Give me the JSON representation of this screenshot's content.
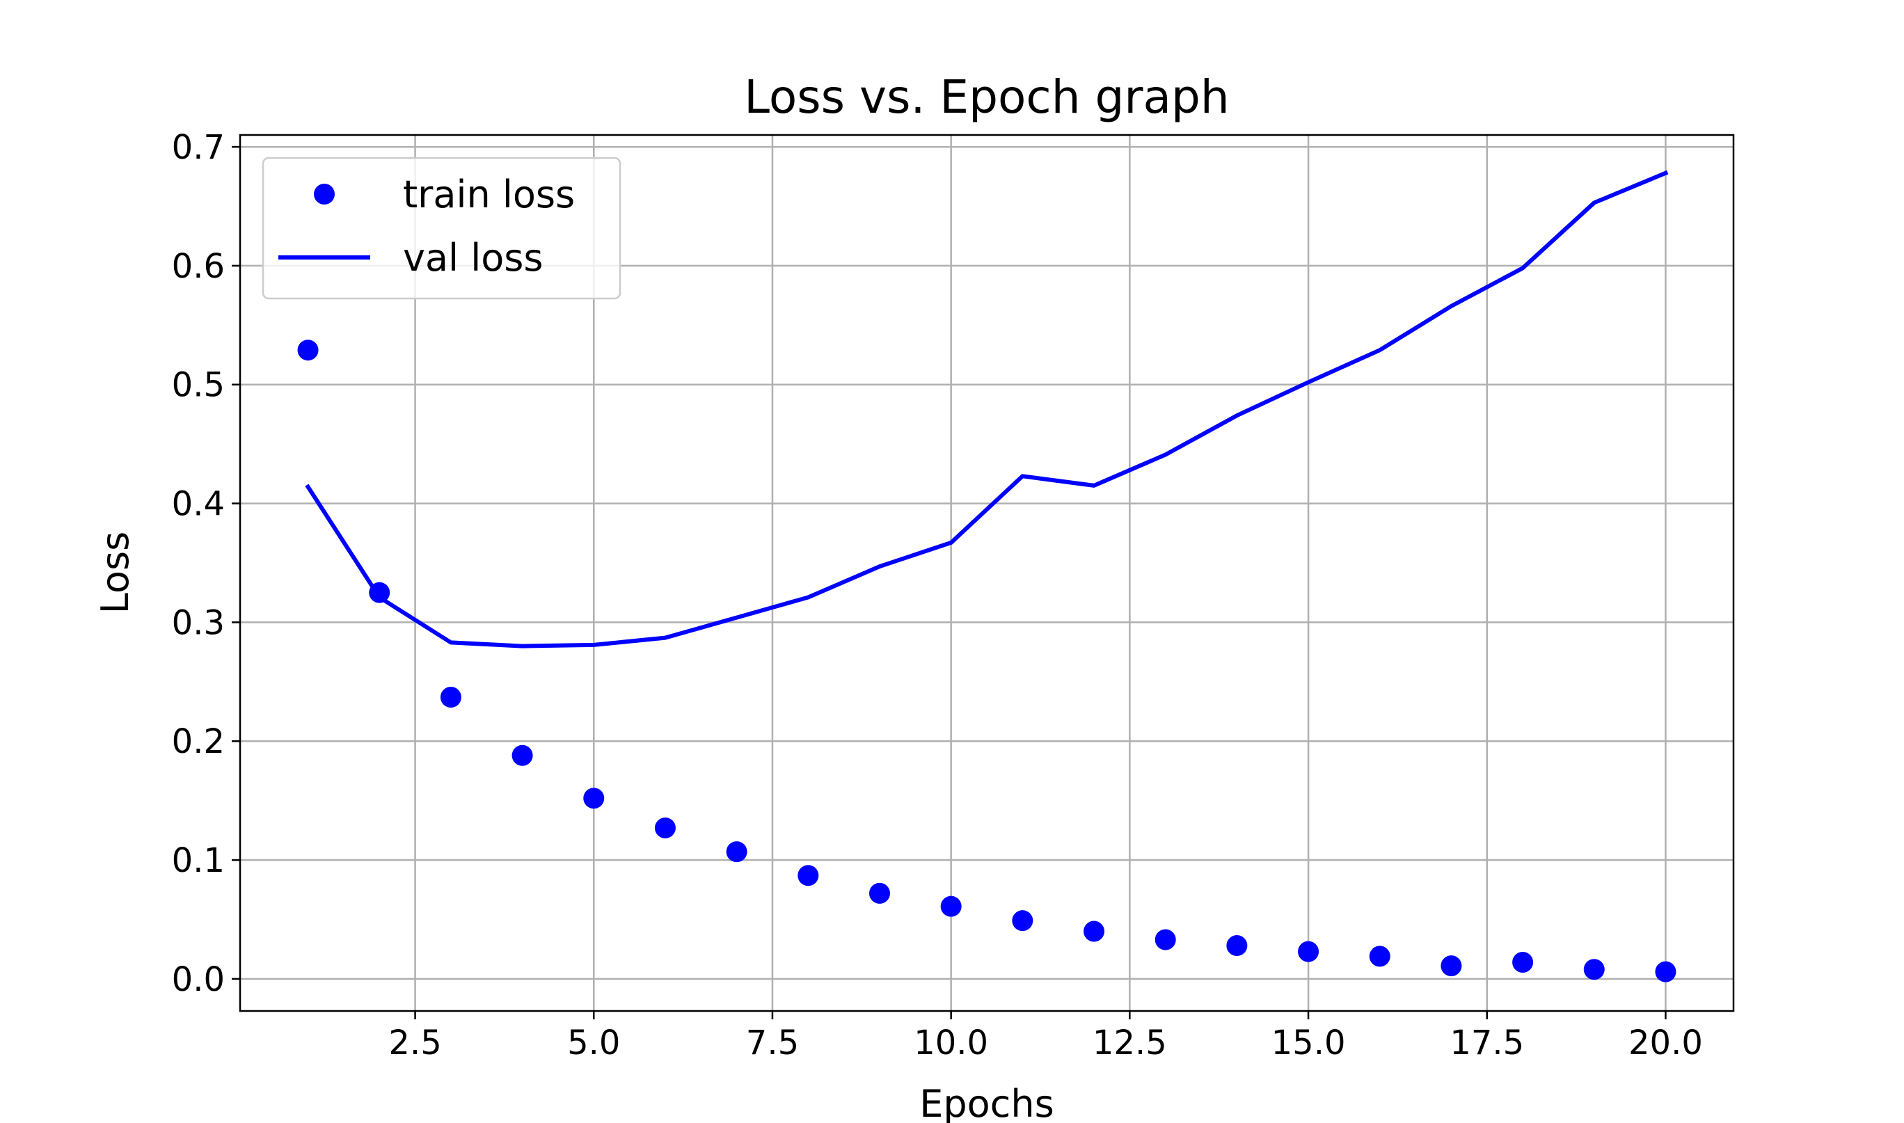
{
  "chart_data": {
    "type": "scatter+line",
    "title": "Loss vs. Epoch graph",
    "xlabel": "Epochs",
    "ylabel": "Loss",
    "xlim": [
      0.05,
      20.95
    ],
    "ylim": [
      -0.027,
      0.71
    ],
    "xticks": [
      2.5,
      5.0,
      7.5,
      10.0,
      12.5,
      15.0,
      17.5,
      20.0
    ],
    "xtick_labels": [
      "2.5",
      "5.0",
      "7.5",
      "10.0",
      "12.5",
      "15.0",
      "17.5",
      "20.0"
    ],
    "yticks": [
      0.0,
      0.1,
      0.2,
      0.3,
      0.4,
      0.5,
      0.6,
      0.7
    ],
    "ytick_labels": [
      "0.0",
      "0.1",
      "0.2",
      "0.3",
      "0.4",
      "0.5",
      "0.6",
      "0.7"
    ],
    "grid": true,
    "legend_position": "top-left",
    "color": "#0000ff",
    "x": [
      1,
      2,
      3,
      4,
      5,
      6,
      7,
      8,
      9,
      10,
      11,
      12,
      13,
      14,
      15,
      16,
      17,
      18,
      19,
      20
    ],
    "series": [
      {
        "name": "train loss",
        "style": "markers",
        "values": [
          0.529,
          0.325,
          0.237,
          0.188,
          0.152,
          0.127,
          0.107,
          0.087,
          0.072,
          0.061,
          0.049,
          0.04,
          0.033,
          0.028,
          0.023,
          0.019,
          0.011,
          0.014,
          0.008,
          0.006
        ]
      },
      {
        "name": "val loss",
        "style": "line",
        "values": [
          0.414,
          0.321,
          0.283,
          0.28,
          0.281,
          0.287,
          0.304,
          0.321,
          0.347,
          0.367,
          0.423,
          0.415,
          0.441,
          0.474,
          0.502,
          0.529,
          0.566,
          0.598,
          0.653,
          0.678
        ]
      }
    ]
  }
}
